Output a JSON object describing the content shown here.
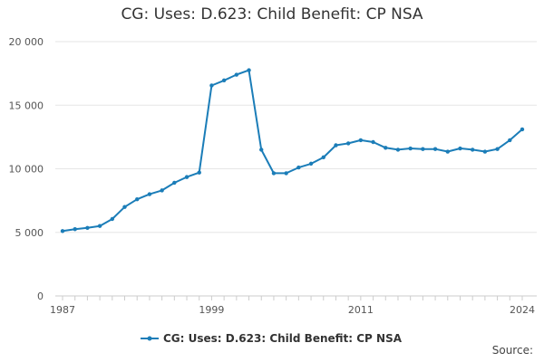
{
  "chart_data": {
    "type": "line",
    "title": "CG: Uses: D.623: Child Benefit: CP NSA",
    "xlabel": "",
    "ylabel": "",
    "xlim": [
      1987,
      2024
    ],
    "ylim": [
      0,
      20000
    ],
    "yticks": [
      0,
      5000,
      10000,
      15000,
      20000
    ],
    "ytick_labels": [
      "0",
      "5 000",
      "10 000",
      "15 000",
      "20 000"
    ],
    "xticks": [
      1987,
      1999,
      2011,
      2024
    ],
    "xtick_labels": [
      "1987",
      "1999",
      "2011",
      "2024"
    ],
    "grid": "horizontal",
    "legend_position": "bottom",
    "series": [
      {
        "name": "CG: Uses: D.623: Child Benefit: CP NSA",
        "color": "#1b7db8",
        "x": [
          1987,
          1988,
          1989,
          1990,
          1991,
          1992,
          1993,
          1994,
          1995,
          1996,
          1997,
          1998,
          1999,
          2000,
          2001,
          2002,
          2003,
          2004,
          2005,
          2006,
          2007,
          2008,
          2009,
          2010,
          2011,
          2012,
          2013,
          2014,
          2015,
          2016,
          2017,
          2018,
          2019,
          2020,
          2021,
          2022,
          2023,
          2024
        ],
        "values": [
          5100,
          5250,
          5350,
          5500,
          6050,
          7000,
          7600,
          8000,
          8300,
          8900,
          9350,
          9700,
          16550,
          16950,
          17400,
          17750,
          11500,
          9650,
          9650,
          10100,
          10400,
          10900,
          11850,
          12000,
          12250,
          12100,
          11650,
          11500,
          11600,
          11550,
          11550,
          11350,
          11600,
          11500,
          11350,
          11550,
          12250,
          13100
        ]
      }
    ]
  },
  "legend": {
    "label": "CG: Uses: D.623: Child Benefit: CP NSA"
  },
  "footer": {
    "source_label": "Source:"
  }
}
